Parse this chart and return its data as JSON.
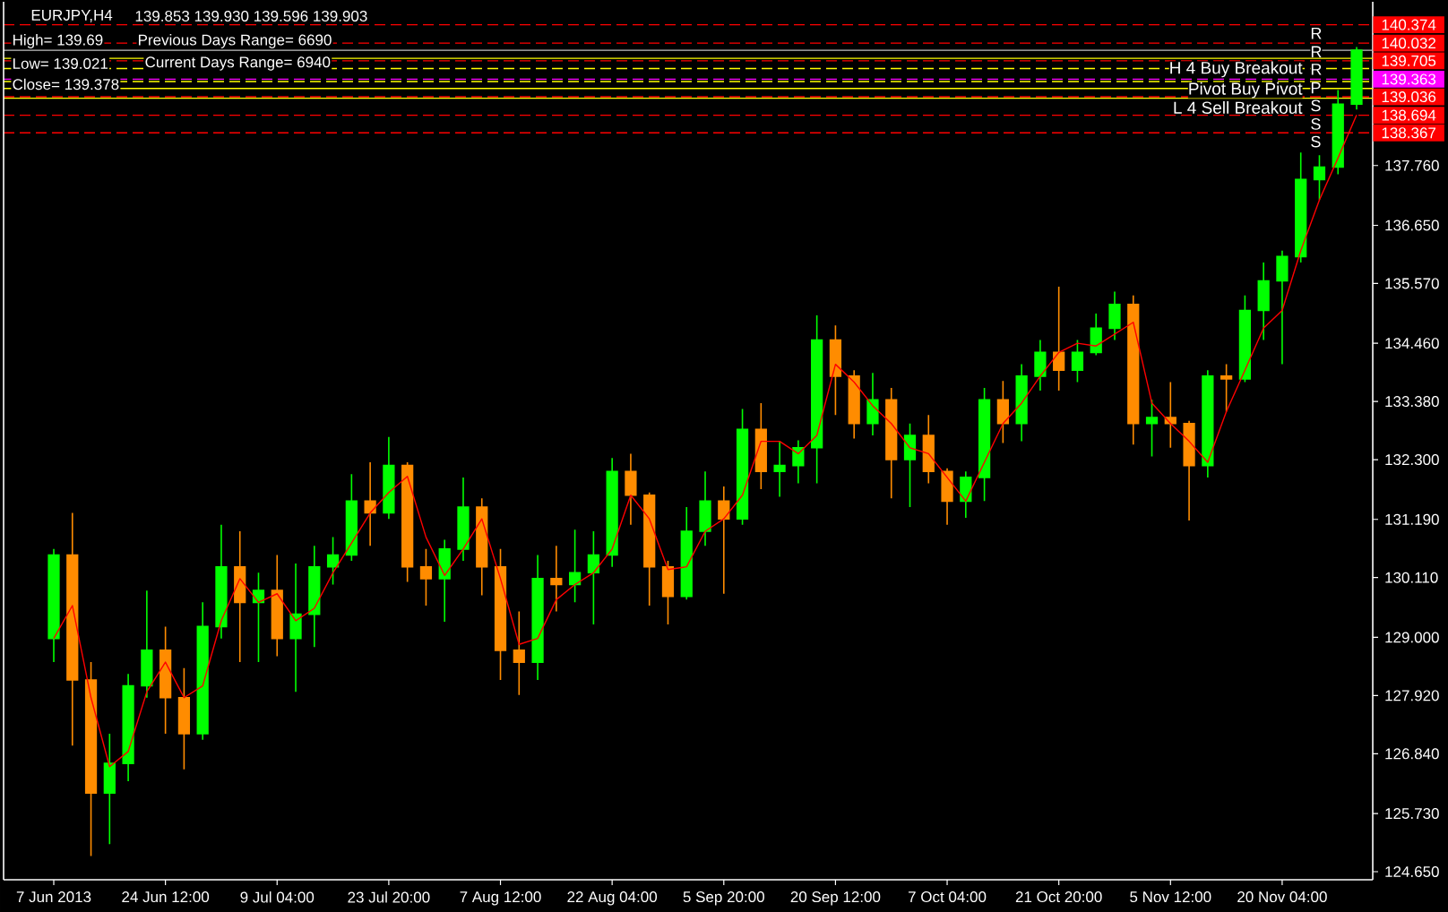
{
  "chart_data": {
    "type": "candlestick",
    "title": "EURJPY,H4",
    "subtitle": "139.853 139.930 139.596 139.903",
    "categories": [
      "7 Jun 2013",
      null,
      null,
      null,
      null,
      null,
      "24 Jun 12:00",
      null,
      null,
      null,
      null,
      null,
      "9 Jul 04:00",
      null,
      null,
      null,
      null,
      null,
      "23 Jul 20:00",
      null,
      null,
      null,
      null,
      null,
      "7 Aug 12:00",
      null,
      null,
      null,
      null,
      null,
      "22 Aug 04:00",
      null,
      null,
      null,
      null,
      null,
      "5 Sep 20:00",
      null,
      null,
      null,
      null,
      null,
      "20 Sep 12:00",
      null,
      null,
      null,
      null,
      null,
      "7 Oct 04:00",
      null,
      null,
      null,
      null,
      null,
      "21 Oct 20:00",
      null,
      null,
      null,
      null,
      null,
      "5 Nov 12:00",
      null,
      null,
      null,
      null,
      null,
      "20 Nov 04:00",
      null,
      null,
      null,
      null
    ],
    "series": [
      {
        "ohlc": [
          [
            128.98,
            130.64,
            128.54,
            130.53
          ],
          [
            130.53,
            131.31,
            126.99,
            128.21
          ],
          [
            128.21,
            128.54,
            124.94,
            126.11
          ],
          [
            126.11,
            127.21,
            125.16,
            126.66
          ],
          [
            126.66,
            128.32,
            126.33,
            128.1
          ],
          [
            128.1,
            129.87,
            127.88,
            128.76
          ],
          [
            128.76,
            129.2,
            127.21,
            127.88
          ],
          [
            127.88,
            128.43,
            126.55,
            127.21
          ],
          [
            127.21,
            129.65,
            127.1,
            129.2
          ],
          [
            129.2,
            131.09,
            128.98,
            130.31
          ],
          [
            130.31,
            130.97,
            128.54,
            129.65
          ],
          [
            129.65,
            130.2,
            128.54,
            129.87
          ],
          [
            129.87,
            130.53,
            128.65,
            128.98
          ],
          [
            128.98,
            130.37,
            127.99,
            129.43
          ],
          [
            129.43,
            130.7,
            128.82,
            130.31
          ],
          [
            130.31,
            130.86,
            129.98,
            130.53
          ],
          [
            130.53,
            132.03,
            130.42,
            131.53
          ],
          [
            131.53,
            132.25,
            130.7,
            131.31
          ],
          [
            131.31,
            132.72,
            131.2,
            132.19
          ],
          [
            132.19,
            132.25,
            130.03,
            130.31
          ],
          [
            130.31,
            130.64,
            129.59,
            130.09
          ],
          [
            130.09,
            130.81,
            129.29,
            130.64
          ],
          [
            130.64,
            131.97,
            130.42,
            131.42
          ],
          [
            131.42,
            131.58,
            129.78,
            130.31
          ],
          [
            130.31,
            130.64,
            128.21,
            128.76
          ],
          [
            128.76,
            129.48,
            127.93,
            128.54
          ],
          [
            128.54,
            130.53,
            128.21,
            130.09
          ],
          [
            130.09,
            130.7,
            129.48,
            129.98
          ],
          [
            129.98,
            131.0,
            129.65,
            130.2
          ],
          [
            130.2,
            130.97,
            129.24,
            130.53
          ],
          [
            130.53,
            132.33,
            130.31,
            132.08
          ],
          [
            132.08,
            132.41,
            131.09,
            131.64
          ],
          [
            131.64,
            131.69,
            129.59,
            130.31
          ],
          [
            130.31,
            130.42,
            129.24,
            129.76
          ],
          [
            129.76,
            131.42,
            129.7,
            130.97
          ],
          [
            130.97,
            132.08,
            130.7,
            131.53
          ],
          [
            131.53,
            131.8,
            129.81,
            131.2
          ],
          [
            131.2,
            133.24,
            131.09,
            132.86
          ],
          [
            132.86,
            133.35,
            131.75,
            132.08
          ],
          [
            132.08,
            132.64,
            131.61,
            132.19
          ],
          [
            132.19,
            132.66,
            131.86,
            132.52
          ],
          [
            132.52,
            134.98,
            131.86,
            134.52
          ],
          [
            134.52,
            134.79,
            133.13,
            133.85
          ],
          [
            133.85,
            133.96,
            132.69,
            132.97
          ],
          [
            132.97,
            133.91,
            132.75,
            133.41
          ],
          [
            133.41,
            133.63,
            131.58,
            132.3
          ],
          [
            132.3,
            132.97,
            131.42,
            132.75
          ],
          [
            132.75,
            133.13,
            131.86,
            132.08
          ],
          [
            132.08,
            132.14,
            131.09,
            131.53
          ],
          [
            131.53,
            132.08,
            131.22,
            131.97
          ],
          [
            131.97,
            133.63,
            131.53,
            133.41
          ],
          [
            133.41,
            133.76,
            132.61,
            132.97
          ],
          [
            132.97,
            134.07,
            132.64,
            133.85
          ],
          [
            133.85,
            134.52,
            133.58,
            134.29
          ],
          [
            134.29,
            135.51,
            133.58,
            133.96
          ],
          [
            133.96,
            134.52,
            133.74,
            134.29
          ],
          [
            134.29,
            135.01,
            134.24,
            134.74
          ],
          [
            134.74,
            135.42,
            134.52,
            135.18
          ],
          [
            135.18,
            135.35,
            132.58,
            132.97
          ],
          [
            132.97,
            133.41,
            132.36,
            133.08
          ],
          [
            133.08,
            133.74,
            132.52,
            132.97
          ],
          [
            132.97,
            133.02,
            131.17,
            132.19
          ],
          [
            132.19,
            133.96,
            131.97,
            133.85
          ],
          [
            133.85,
            134.07,
            133.19,
            133.8
          ],
          [
            133.8,
            135.35,
            133.74,
            135.07
          ],
          [
            135.07,
            135.96,
            134.52,
            135.62
          ],
          [
            135.62,
            136.18,
            134.07,
            136.07
          ],
          [
            136.07,
            138.0,
            135.96,
            137.5
          ],
          [
            137.5,
            137.95,
            137.12,
            137.73
          ],
          [
            137.73,
            139.16,
            137.6,
            138.9
          ],
          [
            138.9,
            139.96,
            138.8,
            139.9
          ]
        ],
        "colors": [
          "#00ff00",
          "#ff8c00",
          "#ff8c00",
          "#00ff00",
          "#00ff00",
          "#00ff00",
          "#ff8c00",
          "#ff8c00",
          "#00ff00",
          "#00ff00",
          "#ff8c00",
          "#00ff00",
          "#ff8c00",
          "#00ff00",
          "#00ff00",
          "#00ff00",
          "#00ff00",
          "#ff8c00",
          "#00ff00",
          "#ff8c00",
          "#ff8c00",
          "#00ff00",
          "#00ff00",
          "#ff8c00",
          "#ff8c00",
          "#ff8c00",
          "#00ff00",
          "#ff8c00",
          "#00ff00",
          "#00ff00",
          "#00ff00",
          "#ff8c00",
          "#ff8c00",
          "#ff8c00",
          "#00ff00",
          "#00ff00",
          "#ff8c00",
          "#00ff00",
          "#ff8c00",
          "#00ff00",
          "#00ff00",
          "#00ff00",
          "#ff8c00",
          "#ff8c00",
          "#00ff00",
          "#ff8c00",
          "#00ff00",
          "#ff8c00",
          "#ff8c00",
          "#00ff00",
          "#00ff00",
          "#ff8c00",
          "#00ff00",
          "#00ff00",
          "#ff8c00",
          "#00ff00",
          "#00ff00",
          "#00ff00",
          "#ff8c00",
          "#00ff00",
          "#ff8c00",
          "#ff8c00",
          "#00ff00",
          "#ff8c00",
          "#00ff00",
          "#00ff00",
          "#00ff00",
          "#00ff00",
          "#00ff00",
          "#00ff00",
          "#00ff00"
        ]
      },
      {
        "type": "line",
        "color": "#ff0000",
        "values": [
          128.98,
          129.59,
          127.88,
          126.6,
          126.88,
          127.99,
          128.54,
          127.88,
          128.1,
          129.31,
          130.09,
          129.65,
          129.81,
          129.31,
          129.54,
          130.2,
          130.75,
          131.31,
          131.69,
          131.99,
          130.86,
          130.15,
          130.64,
          131.2,
          130.09,
          128.87,
          128.98,
          129.7,
          129.98,
          130.2,
          130.64,
          131.64,
          131.2,
          130.26,
          130.31,
          130.97,
          131.2,
          131.64,
          132.64,
          132.64,
          132.41,
          132.75,
          134.07,
          133.74,
          133.3,
          132.97,
          132.52,
          132.41,
          131.97,
          131.53,
          132.25,
          132.97,
          133.35,
          133.85,
          134.29,
          134.46,
          134.41,
          134.63,
          134.85,
          133.35,
          132.97,
          132.64,
          132.25,
          133.19,
          133.96,
          134.74,
          135.07,
          136.18,
          137.12,
          137.9,
          138.7
        ]
      }
    ],
    "ylim": [
      124.5,
      140.8
    ],
    "yticks": [
      {
        "value": 124.65,
        "label": "124.650"
      },
      {
        "value": 125.73,
        "label": "125.730"
      },
      {
        "value": 126.84,
        "label": "126.840"
      },
      {
        "value": 127.92,
        "label": "127.920"
      },
      {
        "value": 129.0,
        "label": "129.000"
      },
      {
        "value": 130.11,
        "label": "130.110"
      },
      {
        "value": 131.19,
        "label": "131.190"
      },
      {
        "value": 132.3,
        "label": "132.300"
      },
      {
        "value": 133.38,
        "label": "133.380"
      },
      {
        "value": 134.46,
        "label": "134.460"
      },
      {
        "value": 135.57,
        "label": "135.570"
      },
      {
        "value": 136.65,
        "label": "136.650"
      },
      {
        "value": 137.76,
        "label": "137.760"
      }
    ],
    "ref_lines": [
      {
        "axis": "y",
        "value": 140.374,
        "label": "140.374",
        "color": "#ff0000",
        "line_style": "dashed"
      },
      {
        "axis": "y",
        "value": 140.032,
        "label": "140.032",
        "color": "#ff0000",
        "line_style": "dashed"
      },
      {
        "axis": "y",
        "value": 139.9,
        "color": "#c0c0c0",
        "line_style": "solid"
      },
      {
        "axis": "y",
        "value": 139.75,
        "color": "#ffff00",
        "line_style": "solid"
      },
      {
        "axis": "y",
        "value": 139.705,
        "label": "139.705",
        "color": "#ff0000",
        "line_style": "dashed"
      },
      {
        "axis": "y",
        "value": 139.56,
        "color": "#ffff00",
        "line_style": "dashed"
      },
      {
        "axis": "y",
        "value": 139.363,
        "label": "139.363",
        "color": "#ff00ff",
        "line_style": "dashed"
      },
      {
        "axis": "y",
        "value": 139.32,
        "color": "#ffff00",
        "line_style": "dashed"
      },
      {
        "axis": "y",
        "value": 139.19,
        "color": "#ffff00",
        "line_style": "solid"
      },
      {
        "axis": "y",
        "value": 139.036,
        "label": "139.036",
        "color": "#ff0000",
        "line_style": "dashed"
      },
      {
        "axis": "y",
        "value": 139.01,
        "color": "#ffff00",
        "line_style": "solid"
      },
      {
        "axis": "y",
        "value": 138.694,
        "label": "138.694",
        "color": "#ff0000",
        "line_style": "dashed"
      },
      {
        "axis": "y",
        "value": 138.367,
        "label": "138.367",
        "color": "#ff0000",
        "line_style": "dashed"
      }
    ],
    "annotations": [
      "High= 139.69",
      "Previous Days Range= 6690",
      "Low= 139.021",
      "Current Days Range= 6940",
      "Close= 139.378",
      {
        "text": "H 4 Buy Breakout",
        "y": 139.75
      },
      {
        "text": "Pivot Buy Pivot",
        "y": 139.363
      },
      {
        "text": "L 4 Sell Breakout",
        "y": 139.01
      },
      {
        "text": "R",
        "y": 140.374
      },
      {
        "text": "R",
        "y": 140.032
      },
      {
        "text": "R",
        "y": 139.705
      },
      {
        "text": "P",
        "y": 139.363
      },
      {
        "text": "S",
        "y": 139.036
      },
      {
        "text": "S",
        "y": 138.694
      },
      {
        "text": "S",
        "y": 138.367
      }
    ]
  }
}
